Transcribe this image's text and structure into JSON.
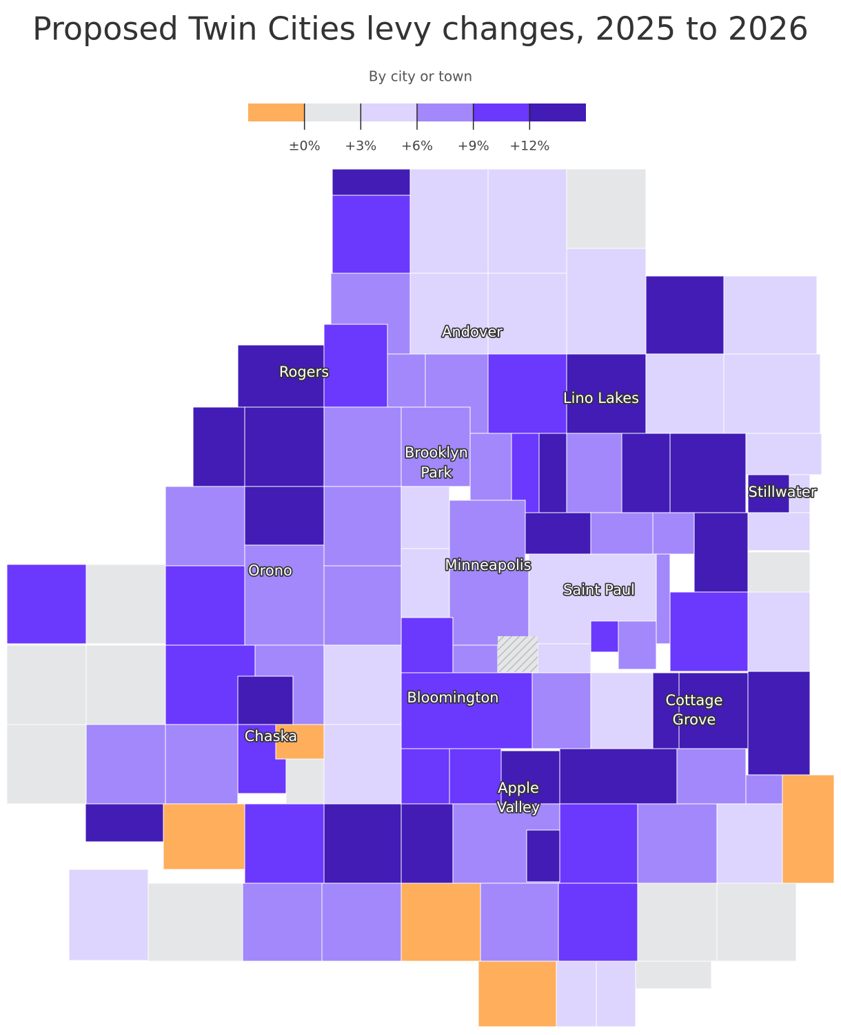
{
  "header": {
    "title": "Proposed Twin Cities levy changes, 2025 to 2026",
    "subtitle": "By city or town"
  },
  "legend": {
    "colors": [
      "#ffae5c",
      "#e5e6e8",
      "#ddd5fd",
      "#a288fb",
      "#6b38fd",
      "#421cb5"
    ],
    "ticks": [
      "±0%",
      "+3%",
      "+6%",
      "+9%",
      "+12%"
    ]
  },
  "labels": [
    "Andover",
    "Rogers",
    "Lino Lakes",
    "Brooklyn Park",
    "Stillwater",
    "Minneapolis",
    "Orono",
    "Saint Paul",
    "Bloomington",
    "Cottage Grove",
    "Chaska",
    "Apple Valley"
  ]
}
